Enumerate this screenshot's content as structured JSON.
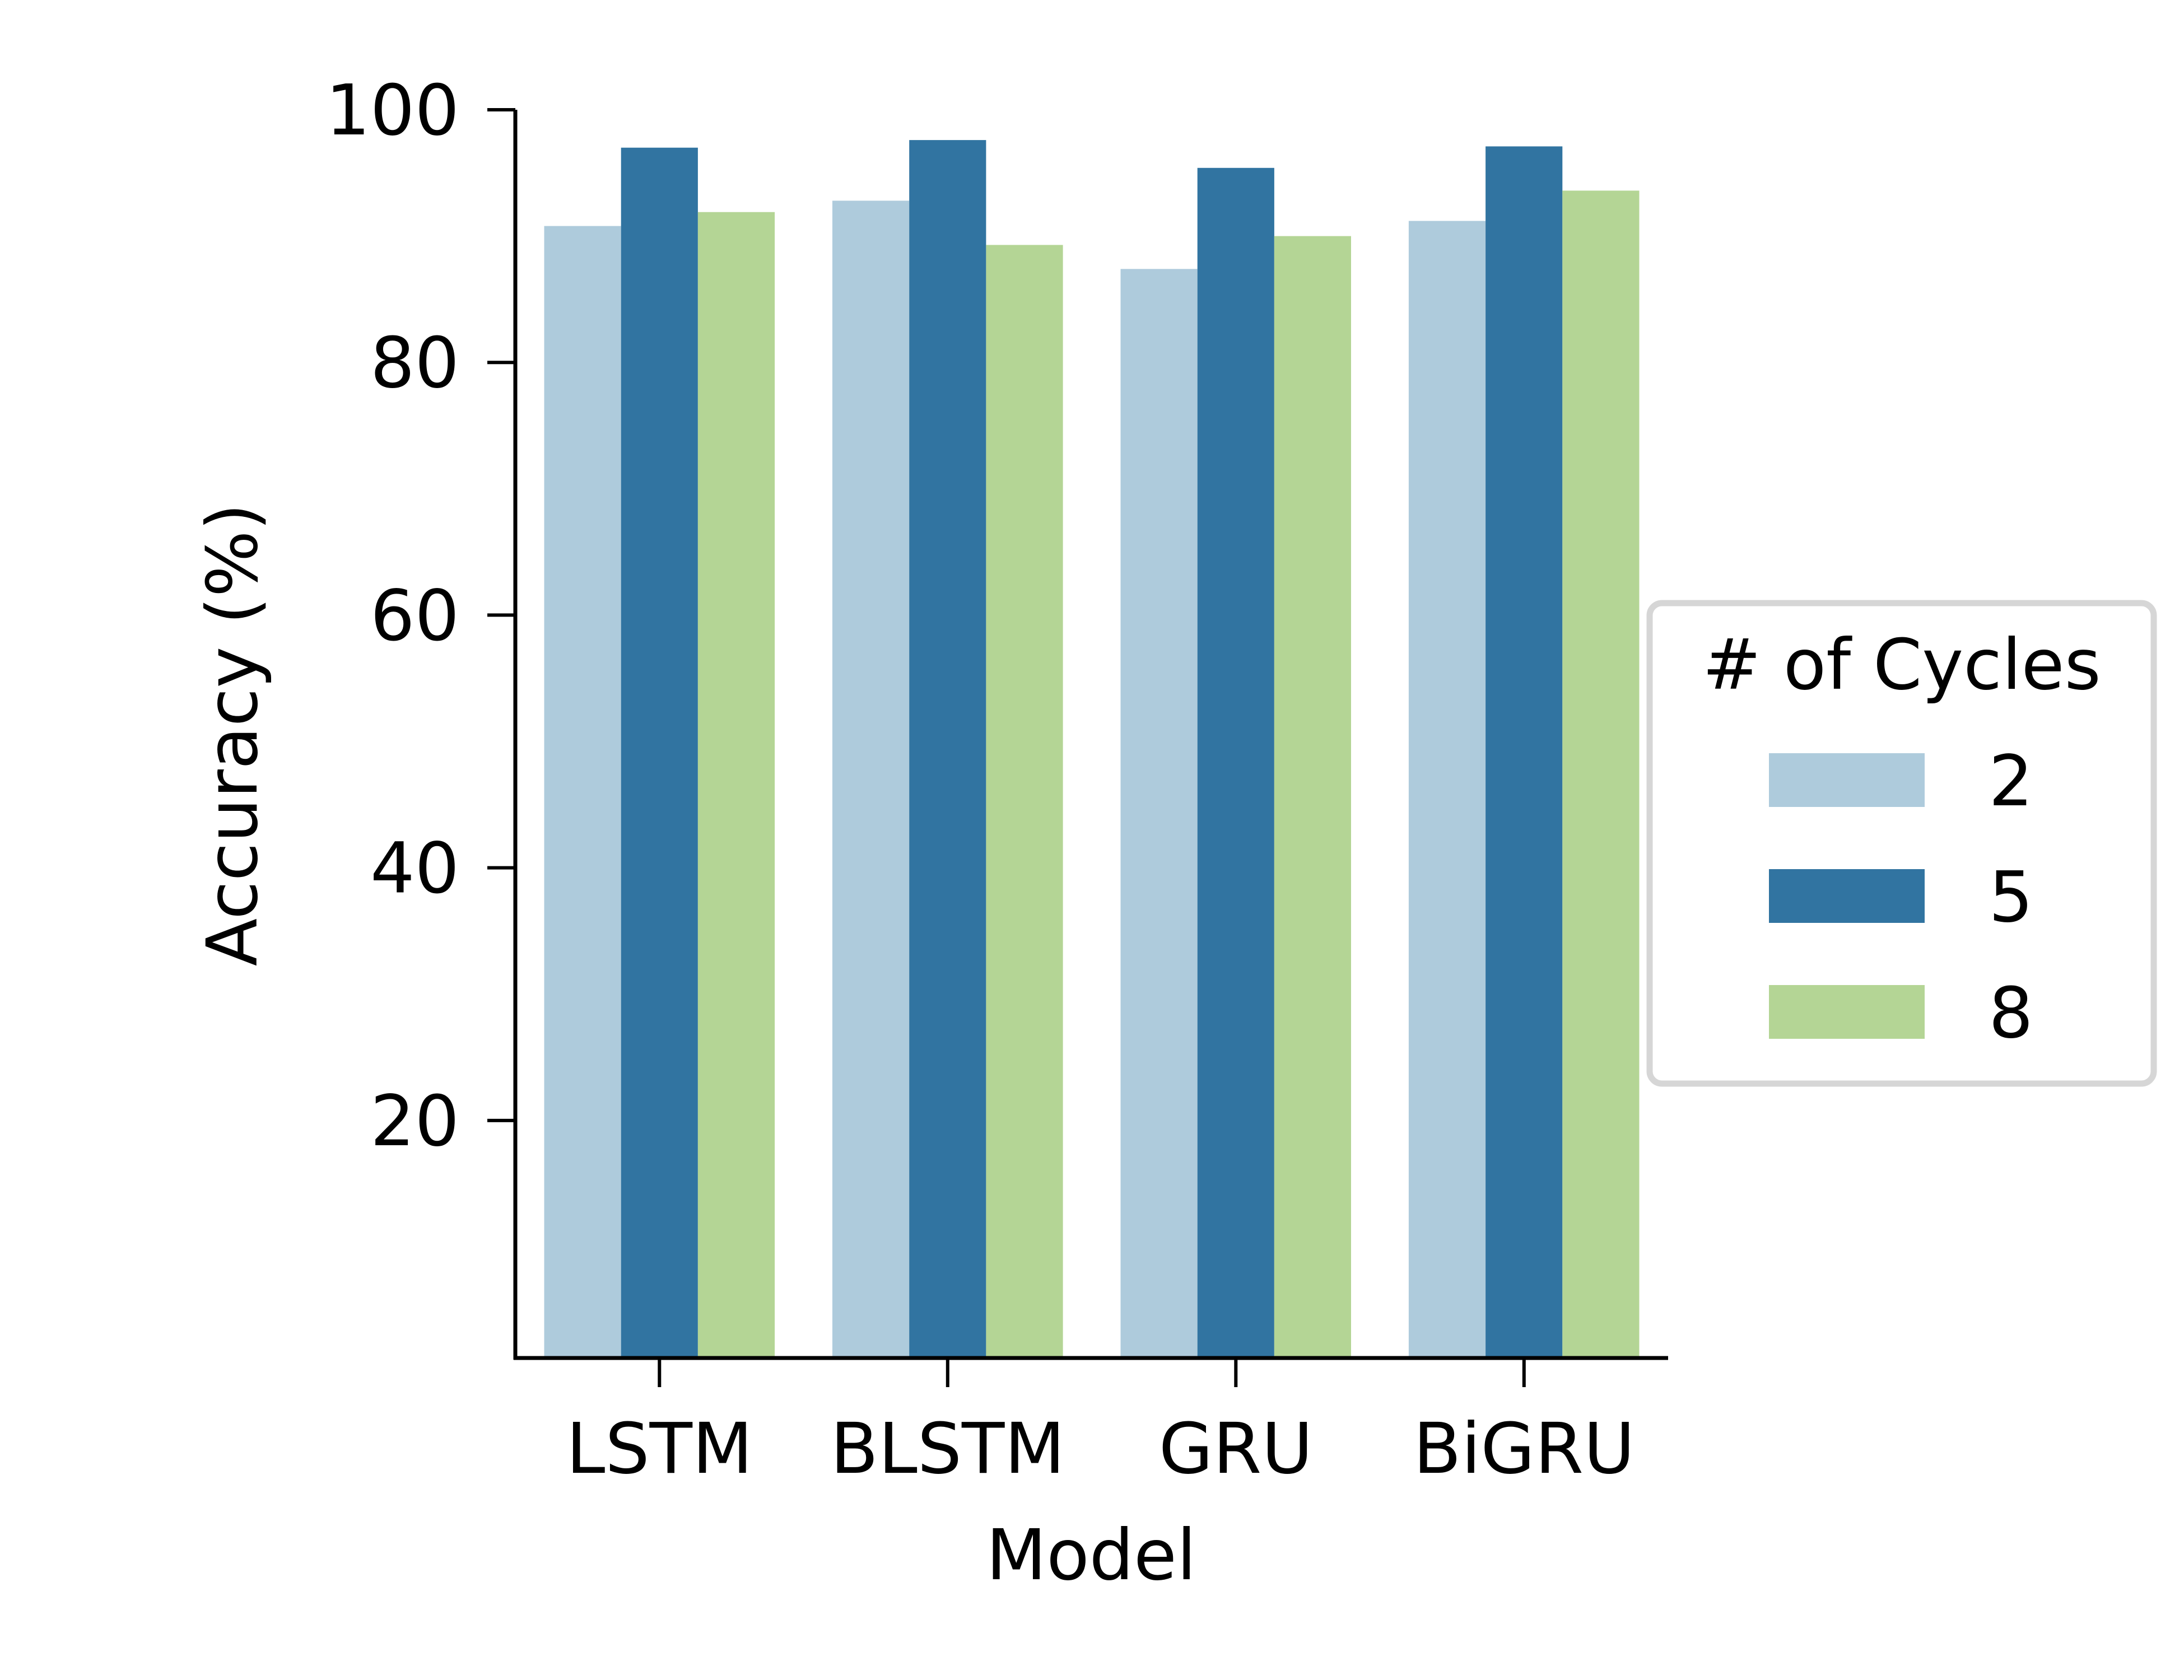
{
  "chart_data": {
    "type": "bar",
    "title": "",
    "xlabel": "Model",
    "ylabel": "Accuracy (%)",
    "categories": [
      "LSTM",
      "BLSTM",
      "GRU",
      "BiGRU"
    ],
    "series": [
      {
        "name": "2",
        "color": "#aecbdc",
        "values": [
          90.8,
          92.8,
          87.4,
          91.2
        ]
      },
      {
        "name": "5",
        "color": "#3174a1",
        "values": [
          97.0,
          97.6,
          95.4,
          97.1
        ]
      },
      {
        "name": "8",
        "color": "#b4d595",
        "values": [
          91.9,
          89.3,
          90.0,
          93.6
        ]
      }
    ],
    "ylim": [
      1.2,
      100
    ],
    "yticks": [
      20,
      40,
      60,
      80,
      100
    ],
    "grid": false,
    "legend": {
      "title": "# of Cycles",
      "placement": "center-right, outside plot"
    }
  }
}
